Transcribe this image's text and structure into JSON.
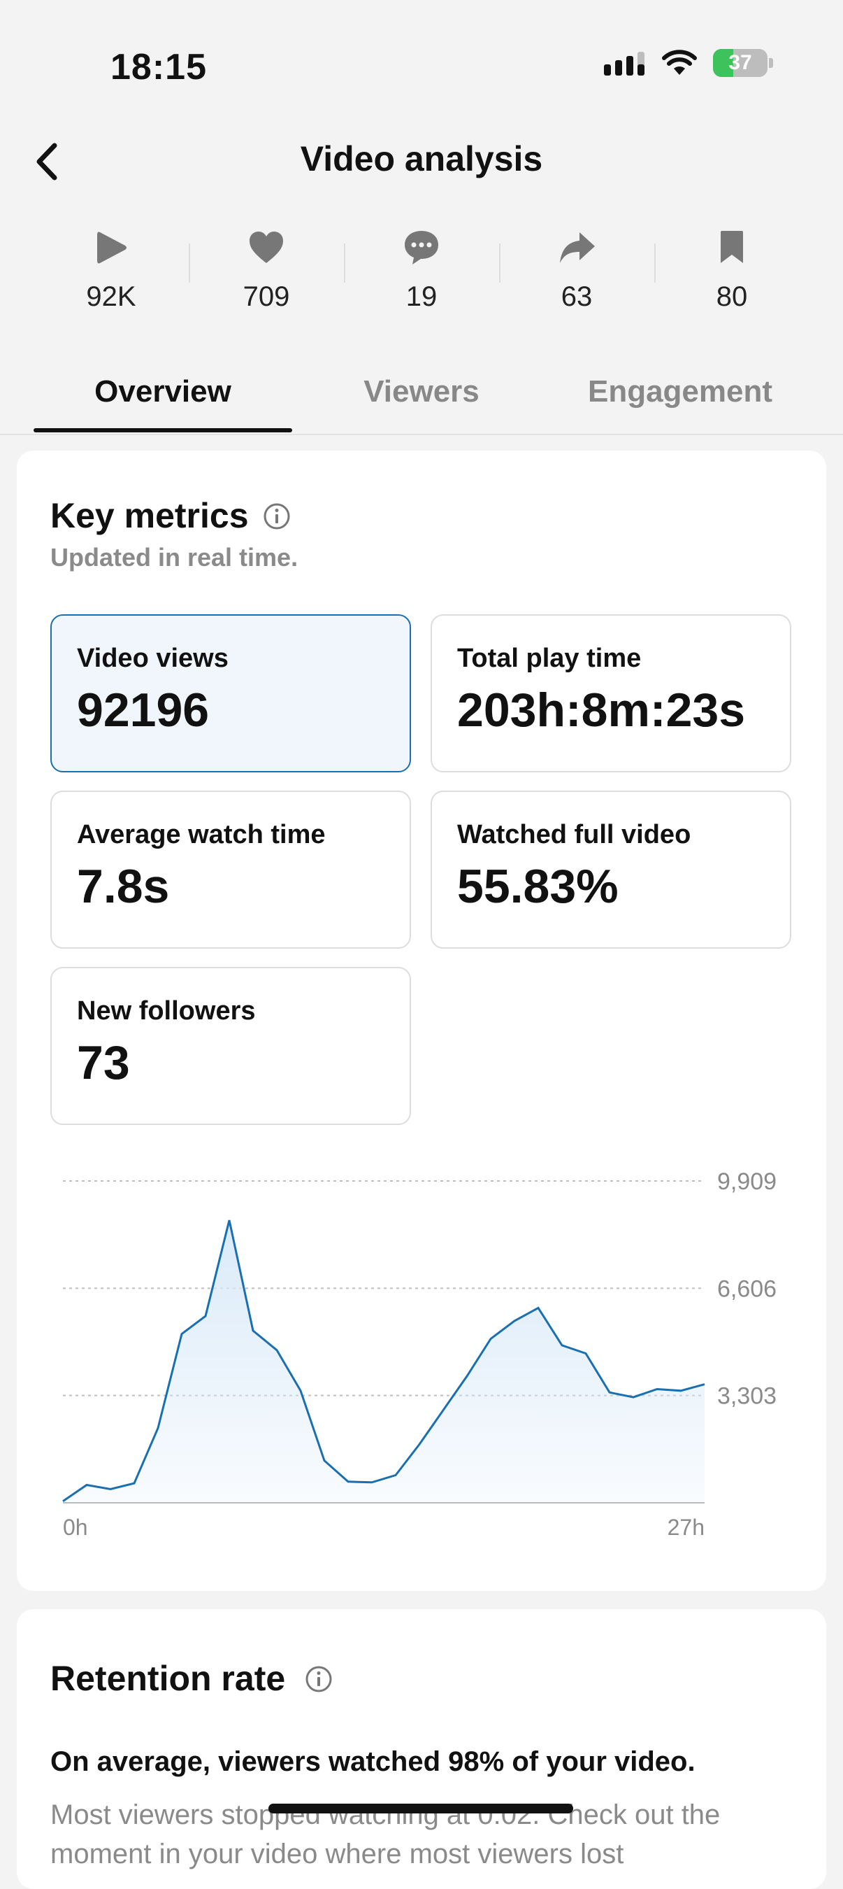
{
  "status_bar": {
    "time": "18:15",
    "battery_level": "37",
    "battery_color": "#3ec25b"
  },
  "header": {
    "title": "Video analysis",
    "back_icon": "chevron-left-icon"
  },
  "stats": [
    {
      "icon": "play-icon",
      "value": "92K"
    },
    {
      "icon": "heart-icon",
      "value": "709"
    },
    {
      "icon": "comment-icon",
      "value": "19"
    },
    {
      "icon": "share-icon",
      "value": "63"
    },
    {
      "icon": "bookmark-icon",
      "value": "80"
    }
  ],
  "tabs": [
    {
      "label": "Overview",
      "active": true
    },
    {
      "label": "Viewers",
      "active": false
    },
    {
      "label": "Engagement",
      "active": false
    }
  ],
  "key_metrics": {
    "title": "Key metrics",
    "subtitle": "Updated in real time.",
    "metrics": [
      {
        "label": "Video views",
        "value": "92196",
        "selected": true
      },
      {
        "label": "Total play time",
        "value": "203h:8m:23s",
        "selected": false
      },
      {
        "label": "Average watch time",
        "value": "7.8s",
        "selected": false
      },
      {
        "label": "Watched full video",
        "value": "55.83%",
        "selected": false
      },
      {
        "label": "New followers",
        "value": "73",
        "selected": false
      }
    ]
  },
  "chart_data": {
    "type": "area",
    "x_range": [
      0,
      27
    ],
    "x_tick_labels": [
      "0h",
      "27h"
    ],
    "y_ticks": [
      3303,
      6606,
      9909
    ],
    "y_tick_labels": [
      "3,303",
      "6,606",
      "9,909"
    ],
    "ylim": [
      0,
      9909
    ],
    "grid": true,
    "line_color": "#1a6fb0",
    "fill_color": "#d6e8f8",
    "x": [
      0,
      1,
      2,
      3,
      4,
      5,
      6,
      7,
      8,
      9,
      10,
      11,
      12,
      13,
      14,
      15,
      16,
      17,
      18,
      19,
      20,
      21,
      22,
      23,
      24,
      25,
      26,
      27
    ],
    "values": [
      50,
      550,
      420,
      600,
      2300,
      5200,
      5750,
      8700,
      5300,
      4700,
      3450,
      1300,
      650,
      630,
      850,
      1800,
      2850,
      3900,
      5050,
      5600,
      6000,
      4850,
      4600,
      3400,
      3250,
      3500,
      3450,
      3650
    ]
  },
  "retention": {
    "title": "Retention rate",
    "summary": "On average, viewers watched 98% of your video.",
    "detail": "Most viewers stopped watching at 0:02. Check out the moment in your video where most viewers lost"
  }
}
